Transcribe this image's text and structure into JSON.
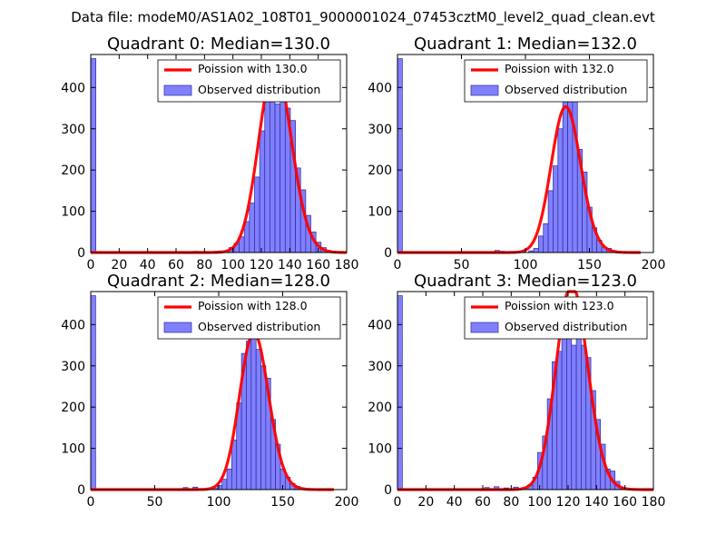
{
  "figure": {
    "suptitle": "Data file: modeM0/AS1A02_108T01_9000001024_07453cztM0_level2_quad_clean.evt"
  },
  "colors": {
    "hist_fill": "#8080ff",
    "hist_edge": "#2a2a9a",
    "poisson_line": "#ff0000",
    "axes": "#000000",
    "background": "#ffffff"
  },
  "chart_data": [
    {
      "type": "bar",
      "title": "Quadrant 0: Median=130.0",
      "median": 130.0,
      "xlim": [
        0,
        180
      ],
      "ylim": [
        0,
        480
      ],
      "xticks": [
        0,
        20,
        40,
        60,
        80,
        100,
        120,
        140,
        160,
        180
      ],
      "yticks": [
        0,
        100,
        200,
        300,
        400
      ],
      "bin_width": 3.6,
      "legend": {
        "location": "top-right",
        "line_label": "Poission with 130.0",
        "bar_label": "Observed distribution"
      },
      "bins": [
        {
          "x": 0,
          "count": 470
        },
        {
          "x": 72,
          "count": 3
        },
        {
          "x": 75.6,
          "count": 2
        },
        {
          "x": 79.2,
          "count": 2
        },
        {
          "x": 82.8,
          "count": 1
        },
        {
          "x": 86.4,
          "count": 3
        },
        {
          "x": 90,
          "count": 4
        },
        {
          "x": 93.6,
          "count": 3
        },
        {
          "x": 97.2,
          "count": 12
        },
        {
          "x": 100.8,
          "count": 22
        },
        {
          "x": 104.4,
          "count": 38
        },
        {
          "x": 108,
          "count": 75
        },
        {
          "x": 111.6,
          "count": 120
        },
        {
          "x": 115.2,
          "count": 183
        },
        {
          "x": 118.8,
          "count": 295
        },
        {
          "x": 122.4,
          "count": 370
        },
        {
          "x": 126,
          "count": 445
        },
        {
          "x": 129.6,
          "count": 360
        },
        {
          "x": 133.2,
          "count": 460
        },
        {
          "x": 136.8,
          "count": 350
        },
        {
          "x": 140.4,
          "count": 320
        },
        {
          "x": 144,
          "count": 205
        },
        {
          "x": 147.6,
          "count": 152
        },
        {
          "x": 151.2,
          "count": 90
        },
        {
          "x": 154.8,
          "count": 50
        },
        {
          "x": 158.4,
          "count": 25
        },
        {
          "x": 162,
          "count": 12
        },
        {
          "x": 165.6,
          "count": 5
        }
      ]
    },
    {
      "type": "bar",
      "title": "Quadrant 1: Median=132.0",
      "median": 132.0,
      "xlim": [
        0,
        200
      ],
      "ylim": [
        0,
        480
      ],
      "xticks": [
        0,
        50,
        100,
        150,
        200
      ],
      "yticks": [
        0,
        100,
        200,
        300,
        400
      ],
      "bin_width": 3.8,
      "legend": {
        "location": "top-right",
        "line_label": "Poission with 132.0",
        "bar_label": "Observed distribution"
      },
      "bins": [
        {
          "x": 0,
          "count": 470
        },
        {
          "x": 76,
          "count": 5
        },
        {
          "x": 79.8,
          "count": 3
        },
        {
          "x": 87.4,
          "count": 2
        },
        {
          "x": 95,
          "count": 2
        },
        {
          "x": 102.6,
          "count": 4
        },
        {
          "x": 106.4,
          "count": 10
        },
        {
          "x": 110.2,
          "count": 40
        },
        {
          "x": 114,
          "count": 70
        },
        {
          "x": 117.8,
          "count": 150
        },
        {
          "x": 121.6,
          "count": 210
        },
        {
          "x": 125.4,
          "count": 300
        },
        {
          "x": 129.2,
          "count": 410
        },
        {
          "x": 133,
          "count": 430
        },
        {
          "x": 136.8,
          "count": 370
        },
        {
          "x": 140.6,
          "count": 250
        },
        {
          "x": 144.4,
          "count": 195
        },
        {
          "x": 148.2,
          "count": 110
        },
        {
          "x": 152,
          "count": 60
        },
        {
          "x": 155.8,
          "count": 30
        },
        {
          "x": 159.6,
          "count": 12
        },
        {
          "x": 163.4,
          "count": 10
        },
        {
          "x": 167.2,
          "count": 5
        },
        {
          "x": 171,
          "count": 3
        }
      ]
    },
    {
      "type": "bar",
      "title": "Quadrant 2: Median=128.0",
      "median": 128.0,
      "xlim": [
        0,
        200
      ],
      "ylim": [
        0,
        480
      ],
      "xticks": [
        0,
        50,
        100,
        150,
        200
      ],
      "yticks": [
        0,
        100,
        200,
        300,
        400
      ],
      "bin_width": 3.8,
      "legend": {
        "location": "top-right",
        "line_label": "Poission with 128.0",
        "bar_label": "Observed distribution"
      },
      "bins": [
        {
          "x": 0,
          "count": 470
        },
        {
          "x": 72.2,
          "count": 5
        },
        {
          "x": 79.8,
          "count": 6
        },
        {
          "x": 95,
          "count": 3
        },
        {
          "x": 98.8,
          "count": 10
        },
        {
          "x": 102.6,
          "count": 25
        },
        {
          "x": 106.4,
          "count": 50
        },
        {
          "x": 110.2,
          "count": 120
        },
        {
          "x": 114,
          "count": 210
        },
        {
          "x": 117.8,
          "count": 330
        },
        {
          "x": 121.6,
          "count": 360
        },
        {
          "x": 125.4,
          "count": 420
        },
        {
          "x": 129.2,
          "count": 340
        },
        {
          "x": 133,
          "count": 300
        },
        {
          "x": 136.8,
          "count": 270
        },
        {
          "x": 140.6,
          "count": 170
        },
        {
          "x": 144.4,
          "count": 110
        },
        {
          "x": 148.2,
          "count": 50
        },
        {
          "x": 152,
          "count": 30
        },
        {
          "x": 155.8,
          "count": 15
        },
        {
          "x": 159.6,
          "count": 8
        },
        {
          "x": 163.4,
          "count": 4
        }
      ]
    },
    {
      "type": "bar",
      "title": "Quadrant 3: Median=123.0",
      "median": 123.0,
      "xlim": [
        0,
        180
      ],
      "ylim": [
        0,
        480
      ],
      "xticks": [
        0,
        20,
        40,
        60,
        80,
        100,
        120,
        140,
        160,
        180
      ],
      "yticks": [
        0,
        100,
        200,
        300,
        400
      ],
      "bin_width": 3.4,
      "legend": {
        "location": "top-right",
        "line_label": "Poission with 123.0",
        "bar_label": "Observed distribution"
      },
      "bins": [
        {
          "x": 0,
          "count": 470
        },
        {
          "x": 61.2,
          "count": 5
        },
        {
          "x": 68,
          "count": 7
        },
        {
          "x": 74.8,
          "count": 4
        },
        {
          "x": 81.6,
          "count": 6
        },
        {
          "x": 88.4,
          "count": 5
        },
        {
          "x": 91.8,
          "count": 12
        },
        {
          "x": 95.2,
          "count": 30
        },
        {
          "x": 98.6,
          "count": 90
        },
        {
          "x": 102,
          "count": 130
        },
        {
          "x": 105.4,
          "count": 220
        },
        {
          "x": 108.8,
          "count": 310
        },
        {
          "x": 112.2,
          "count": 335
        },
        {
          "x": 115.6,
          "count": 400
        },
        {
          "x": 119,
          "count": 420
        },
        {
          "x": 122.4,
          "count": 350
        },
        {
          "x": 125.8,
          "count": 440
        },
        {
          "x": 129.2,
          "count": 350
        },
        {
          "x": 132.6,
          "count": 320
        },
        {
          "x": 136,
          "count": 240
        },
        {
          "x": 139.4,
          "count": 170
        },
        {
          "x": 142.8,
          "count": 110
        },
        {
          "x": 146.2,
          "count": 50
        },
        {
          "x": 149.6,
          "count": 45
        },
        {
          "x": 153,
          "count": 20
        },
        {
          "x": 156.4,
          "count": 5
        }
      ]
    }
  ]
}
